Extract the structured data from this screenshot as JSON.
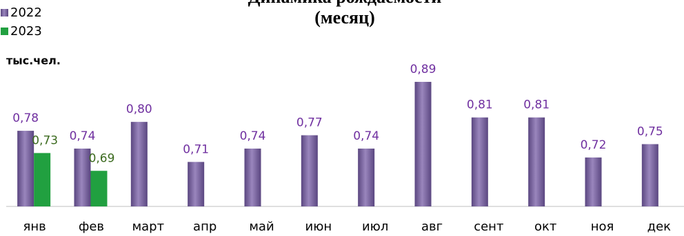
{
  "chart_data": {
    "type": "bar",
    "title": "Динамика рождаемости",
    "subtitle": "(месяц)",
    "unit_label": "тыс.чел.",
    "categories": [
      "янв",
      "фев",
      "март",
      "апр",
      "май",
      "июн",
      "июл",
      "авг",
      "сент",
      "окт",
      "ноя",
      "дек"
    ],
    "series": [
      {
        "name": "2022",
        "color": "#7d66a3",
        "label_color": "#7030a0",
        "values": [
          0.78,
          0.74,
          0.8,
          0.71,
          0.74,
          0.77,
          0.74,
          0.89,
          0.81,
          0.81,
          0.72,
          0.75
        ],
        "value_labels": [
          "0,78",
          "0,74",
          "0,80",
          "0,71",
          "0,74",
          "0,77",
          "0,74",
          "0,89",
          "0,81",
          "0,81",
          "0,72",
          "0,75"
        ]
      },
      {
        "name": "2023",
        "color": "#21a040",
        "label_color": "#3b6a1e",
        "values": [
          0.73,
          0.69,
          null,
          null,
          null,
          null,
          null,
          null,
          null,
          null,
          null,
          null
        ],
        "value_labels": [
          "0,73",
          "0,69",
          null,
          null,
          null,
          null,
          null,
          null,
          null,
          null,
          null,
          null
        ]
      }
    ],
    "ylim": [
      0.61,
      0.9
    ],
    "legend": "top-left"
  }
}
